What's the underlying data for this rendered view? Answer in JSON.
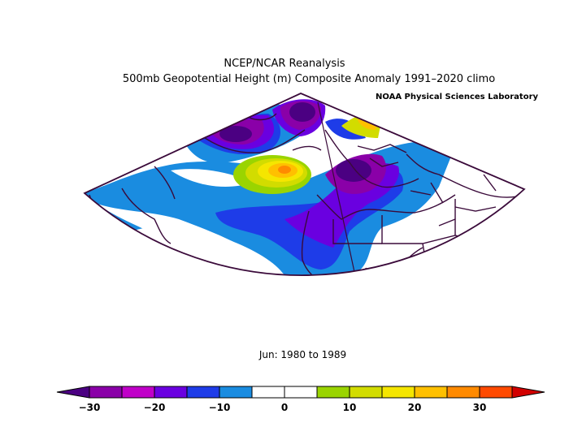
{
  "header": {
    "line1": "NCEP/NCAR Reanalysis",
    "line2": "500mb Geopotential Height (m) Composite Anomaly 1991–2020 climo",
    "credit": "NOAA Physical Sciences Laboratory"
  },
  "period": "Jun: 1980 to 1989",
  "colorbar": {
    "colors": [
      "#4b0082",
      "#8a00a8",
      "#c000c8",
      "#6a00e0",
      "#1e3ce8",
      "#1a8ce0",
      "#ffffff",
      "#ffffff",
      "#9ad400",
      "#d2dc00",
      "#f5e600",
      "#ffc000",
      "#ff8a00",
      "#ff4a00",
      "#d20000"
    ],
    "ticks": [
      {
        "label": "−30",
        "pos": 0
      },
      {
        "label": "−20",
        "pos": 2
      },
      {
        "label": "−10",
        "pos": 4
      },
      {
        "label": "0",
        "pos": 6
      },
      {
        "label": "10",
        "pos": 8
      },
      {
        "label": "20",
        "pos": 10
      },
      {
        "label": "30",
        "pos": 12
      }
    ]
  }
}
